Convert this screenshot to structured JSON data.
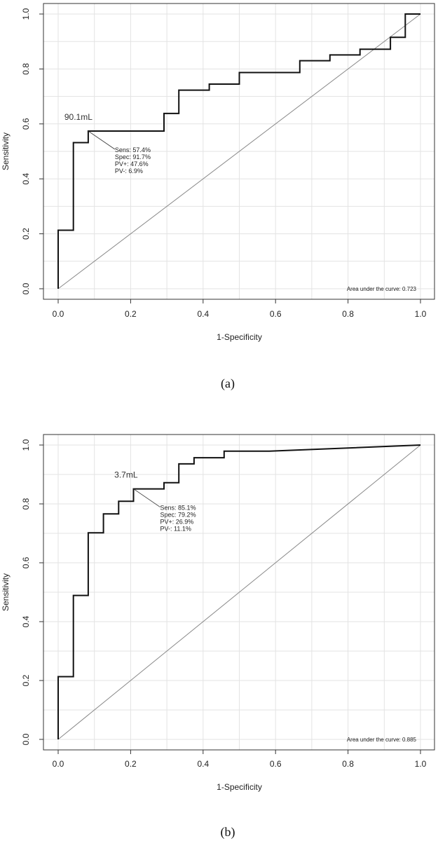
{
  "chart_data": [
    {
      "type": "line",
      "xlabel": "1-Specificity",
      "ylabel": "Sensitivity",
      "xlim": [
        0,
        1
      ],
      "ylim": [
        0,
        1
      ],
      "grid": true,
      "x_ticks": [
        "0.0",
        "0.2",
        "0.4",
        "0.6",
        "0.8",
        "1.0"
      ],
      "y_ticks": [
        "0.0",
        "0.2",
        "0.4",
        "0.6",
        "0.8",
        "1.0"
      ],
      "reference_line": {
        "x": [
          0,
          1
        ],
        "y": [
          0,
          1
        ]
      },
      "series": [
        {
          "x": [
            0,
            0,
            0.042,
            0.042,
            0.083,
            0.083,
            0.292,
            0.292,
            0.333,
            0.333,
            0.417,
            0.417,
            0.5,
            0.5,
            0.667,
            0.667,
            0.75,
            0.75,
            0.833,
            0.833,
            0.917,
            0.917,
            0.958,
            0.958,
            1.0
          ],
          "y": [
            0,
            0.213,
            0.213,
            0.532,
            0.532,
            0.574,
            0.574,
            0.638,
            0.638,
            0.723,
            0.723,
            0.745,
            0.745,
            0.787,
            0.787,
            0.83,
            0.83,
            0.851,
            0.851,
            0.872,
            0.872,
            0.915,
            0.915,
            1.0,
            1.0
          ]
        }
      ],
      "cutoff": {
        "x": 0.083,
        "y": 0.574,
        "label": "90.1mL",
        "lines": [
          "Sens: 57.4%",
          "Spec: 91.7%",
          "PV+: 47.6%",
          "PV-: 6.9%"
        ]
      },
      "auc_text": "Area under the curve: 0.723",
      "caption": "(a)"
    },
    {
      "type": "line",
      "xlabel": "1-Specificity",
      "ylabel": "Sensitivity",
      "xlim": [
        0,
        1
      ],
      "ylim": [
        0,
        1
      ],
      "grid": true,
      "x_ticks": [
        "0.0",
        "0.2",
        "0.4",
        "0.6",
        "0.8",
        "1.0"
      ],
      "y_ticks": [
        "0.0",
        "0.2",
        "0.4",
        "0.6",
        "0.8",
        "1.0"
      ],
      "reference_line": {
        "x": [
          0,
          1
        ],
        "y": [
          0,
          1
        ]
      },
      "series": [
        {
          "x": [
            0,
            0,
            0.042,
            0.042,
            0.083,
            0.083,
            0.125,
            0.125,
            0.167,
            0.167,
            0.208,
            0.208,
            0.292,
            0.292,
            0.333,
            0.333,
            0.375,
            0.375,
            0.458,
            0.458,
            0.583,
            1.0
          ],
          "y": [
            0,
            0.213,
            0.213,
            0.489,
            0.489,
            0.702,
            0.702,
            0.766,
            0.766,
            0.809,
            0.809,
            0.851,
            0.851,
            0.872,
            0.872,
            0.936,
            0.936,
            0.957,
            0.957,
            0.979,
            0.979,
            1.0
          ]
        }
      ],
      "cutoff": {
        "x": 0.208,
        "y": 0.851,
        "label": "3.7mL",
        "lines": [
          "Sens: 85.1%",
          "Spec: 79.2%",
          "PV+: 26.9%",
          "PV-: 11.1%"
        ]
      },
      "auc_text": "Area under the curve: 0.885",
      "caption": "(b)"
    }
  ]
}
